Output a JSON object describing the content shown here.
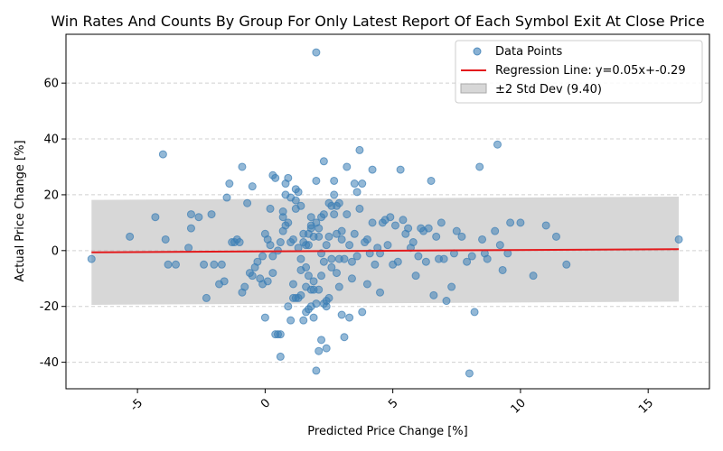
{
  "chart_data": {
    "type": "scatter",
    "title": "Win Rates And Counts By Group For Only Latest Report Of Each Symbol Exit At Close Price",
    "xlabel": "Predicted Price Change [%]",
    "ylabel": "Actual Price Change [%]",
    "xlim": [
      -7.8,
      17.4
    ],
    "ylim": [
      -49.5,
      77.5
    ],
    "x_ticks": [
      -5,
      0,
      5,
      10,
      15
    ],
    "x_tick_labels": [
      "-5",
      "0",
      "5",
      "10",
      "15"
    ],
    "y_ticks": [
      -40,
      -20,
      0,
      20,
      40,
      60
    ],
    "y_tick_labels": [
      "-40",
      "-20",
      "0",
      "20",
      "40",
      "60"
    ],
    "grid": "y-dashed",
    "legend_position": "top-right",
    "legend": {
      "points": "Data Points",
      "regression": "Regression Line: y=0.05x+-0.29",
      "band": "±2 Std Dev (9.40)"
    },
    "colors": {
      "points": "#3a7db5",
      "regression": "#e31a1c",
      "band": "#bdbdbd"
    },
    "regression": {
      "slope": 0.05,
      "intercept": -0.29,
      "x_range": [
        -6.8,
        16.2
      ]
    },
    "band": {
      "half_width": 18.8
    },
    "series": [
      {
        "name": "Data Points",
        "x": [
          2.0,
          9.1,
          3.7,
          -4.0,
          2.3,
          8.4,
          4.2,
          5.3,
          -0.9,
          3.2,
          0.3,
          2.0,
          -1.4,
          6.5,
          0.9,
          0.8,
          0.4,
          2.7,
          3.5,
          -0.5,
          1.2,
          3.8,
          4.5,
          -2.9,
          -3.9,
          1.0,
          0.7,
          2.1,
          2.4,
          1.8,
          0.0,
          -0.1,
          1.1,
          1.6,
          2.8,
          3.1,
          4.6,
          5.8,
          6.7,
          9.6,
          11.4,
          0.2,
          -0.3,
          0.5,
          1.5,
          2.2,
          2.5,
          2.9,
          3.3,
          3.6,
          4.0,
          4.4,
          5.0,
          5.5,
          6.0,
          6.3,
          7.0,
          7.5,
          7.9,
          8.5,
          9.2,
          10.0,
          11.0,
          11.8,
          16.2,
          -6.8,
          -5.3,
          -4.3,
          -3.8,
          -3.5,
          -3.0,
          -2.6,
          -2.4,
          -2.0,
          -1.6,
          -1.3,
          -1.1,
          -0.8,
          -0.6,
          -0.4,
          -0.2,
          0.1,
          0.6,
          1.3,
          1.4,
          1.7,
          1.9,
          2.6,
          3.0,
          3.4,
          3.9,
          4.1,
          4.8,
          5.2,
          5.7,
          6.2,
          6.8,
          7.3,
          8.1,
          8.7,
          9.3,
          10.5,
          1.8,
          2.0,
          -1.0,
          0.3,
          0.7,
          1.6,
          2.2,
          2.8,
          3.5,
          4.3,
          5.1,
          6.6,
          7.1,
          -0.9,
          0.2,
          1.1,
          1.9,
          2.6,
          3.2,
          4.0,
          5.6,
          8.2,
          -0.1,
          1.4,
          2.4,
          3.0,
          1.8,
          1.9,
          2.1,
          8.0,
          1.5,
          2.2,
          1.2,
          0.9,
          1.7,
          2.3,
          2.5,
          1.0,
          0.6,
          0.4,
          3.3,
          2.7,
          -1.5,
          -0.7,
          0.8,
          1.3,
          2.9,
          3.7,
          4.7,
          5.4,
          6.1,
          6.9,
          7.7,
          9.0,
          -2.9,
          -2.3,
          -1.8,
          0.1,
          0.5,
          1.6,
          2.0,
          2.4,
          3.1,
          3.8,
          4.5,
          5.9,
          1.1,
          1.5,
          2.1,
          2.6,
          0.9,
          1.7,
          2.3,
          1.4,
          2.8,
          0.7,
          1.9,
          2.2,
          1.2,
          1.8,
          2.5,
          3.4,
          4.2,
          0.3,
          0.0,
          2.0,
          1.6,
          1.3,
          2.7,
          3.0,
          -0.5,
          -1.2,
          0.6,
          2.4,
          1.0,
          1.8,
          2.1,
          3.6,
          4.9,
          6.4,
          7.4,
          8.6,
          9.5,
          -2.1,
          -1.7,
          0.8,
          1.4,
          2.9,
          1.2,
          2.3,
          1.7
        ],
        "y": [
          71.0,
          38.0,
          36.0,
          34.5,
          32.0,
          30.0,
          29.0,
          29.0,
          30.0,
          30.0,
          27.0,
          25.0,
          24.0,
          25.0,
          26.0,
          24.0,
          26.0,
          25.0,
          24.0,
          23.0,
          22.0,
          24.0,
          -1.0,
          8.0,
          4.0,
          3.0,
          7.0,
          5.0,
          2.0,
          8.0,
          6.0,
          -2.0,
          4.0,
          2.0,
          6.0,
          -3.0,
          10.0,
          3.0,
          5.0,
          10.0,
          5.0,
          2.0,
          -4.0,
          0.0,
          3.0,
          -1.0,
          5.0,
          -3.0,
          2.0,
          -2.0,
          4.0,
          1.0,
          -5.0,
          6.0,
          -2.0,
          -4.0,
          -3.0,
          7.0,
          -4.0,
          4.0,
          2.0,
          10.0,
          9.0,
          -5.0,
          4.0,
          -3.0,
          5.0,
          12.0,
          -5.0,
          -5.0,
          1.0,
          12.0,
          -5.0,
          -5.0,
          -11.0,
          3.0,
          4.0,
          -13.0,
          -8.0,
          -6.0,
          -10.0,
          4.0,
          3.0,
          1.0,
          -3.0,
          2.0,
          5.0,
          -3.0,
          4.0,
          -4.0,
          3.0,
          -1.0,
          2.0,
          -4.0,
          1.0,
          7.0,
          -3.0,
          -13.0,
          -2.0,
          -3.0,
          -7.0,
          -9.0,
          12.0,
          10.0,
          3.0,
          -8.0,
          14.0,
          -6.0,
          12.0,
          -8.0,
          6.0,
          -5.0,
          9.0,
          -16.0,
          -18.0,
          -15.0,
          15.0,
          -12.0,
          -14.0,
          16.0,
          13.0,
          -12.0,
          8.0,
          -22.0,
          -12.0,
          16.0,
          -18.0,
          -23.0,
          -20.0,
          -24.0,
          -36.0,
          -44.0,
          -25.0,
          -32.0,
          -17.0,
          -20.0,
          -21.0,
          -19.0,
          -17.0,
          -25.0,
          -30.0,
          -30.0,
          -24.0,
          20.0,
          19.0,
          17.0,
          20.0,
          21.0,
          17.0,
          15.0,
          11.0,
          11.0,
          8.0,
          10.0,
          5.0,
          7.0,
          13.0,
          -17.0,
          -12.0,
          -11.0,
          -30.0,
          -13.0,
          -19.0,
          -35.0,
          -31.0,
          -22.0,
          -15.0,
          -9.0,
          -17.0,
          6.0,
          8.0,
          -6.0,
          10.0,
          -9.0,
          13.0,
          -16.0,
          16.0,
          12.0,
          -11.0,
          -9.0,
          18.0,
          -14.0,
          17.0,
          -10.0,
          10.0,
          -2.0,
          -24.0,
          -43.0,
          -22.0,
          -17.0,
          13.0,
          7.0,
          -9.0,
          3.0,
          -38.0,
          -20.0,
          19.0,
          9.0,
          -14.0,
          21.0,
          12.0,
          8.0,
          -1.0,
          -1.0,
          -1.0,
          13.0,
          -5.0,
          9.0,
          -7.0,
          -13.0,
          15.0,
          -4.0,
          6.0
        ]
      }
    ]
  }
}
